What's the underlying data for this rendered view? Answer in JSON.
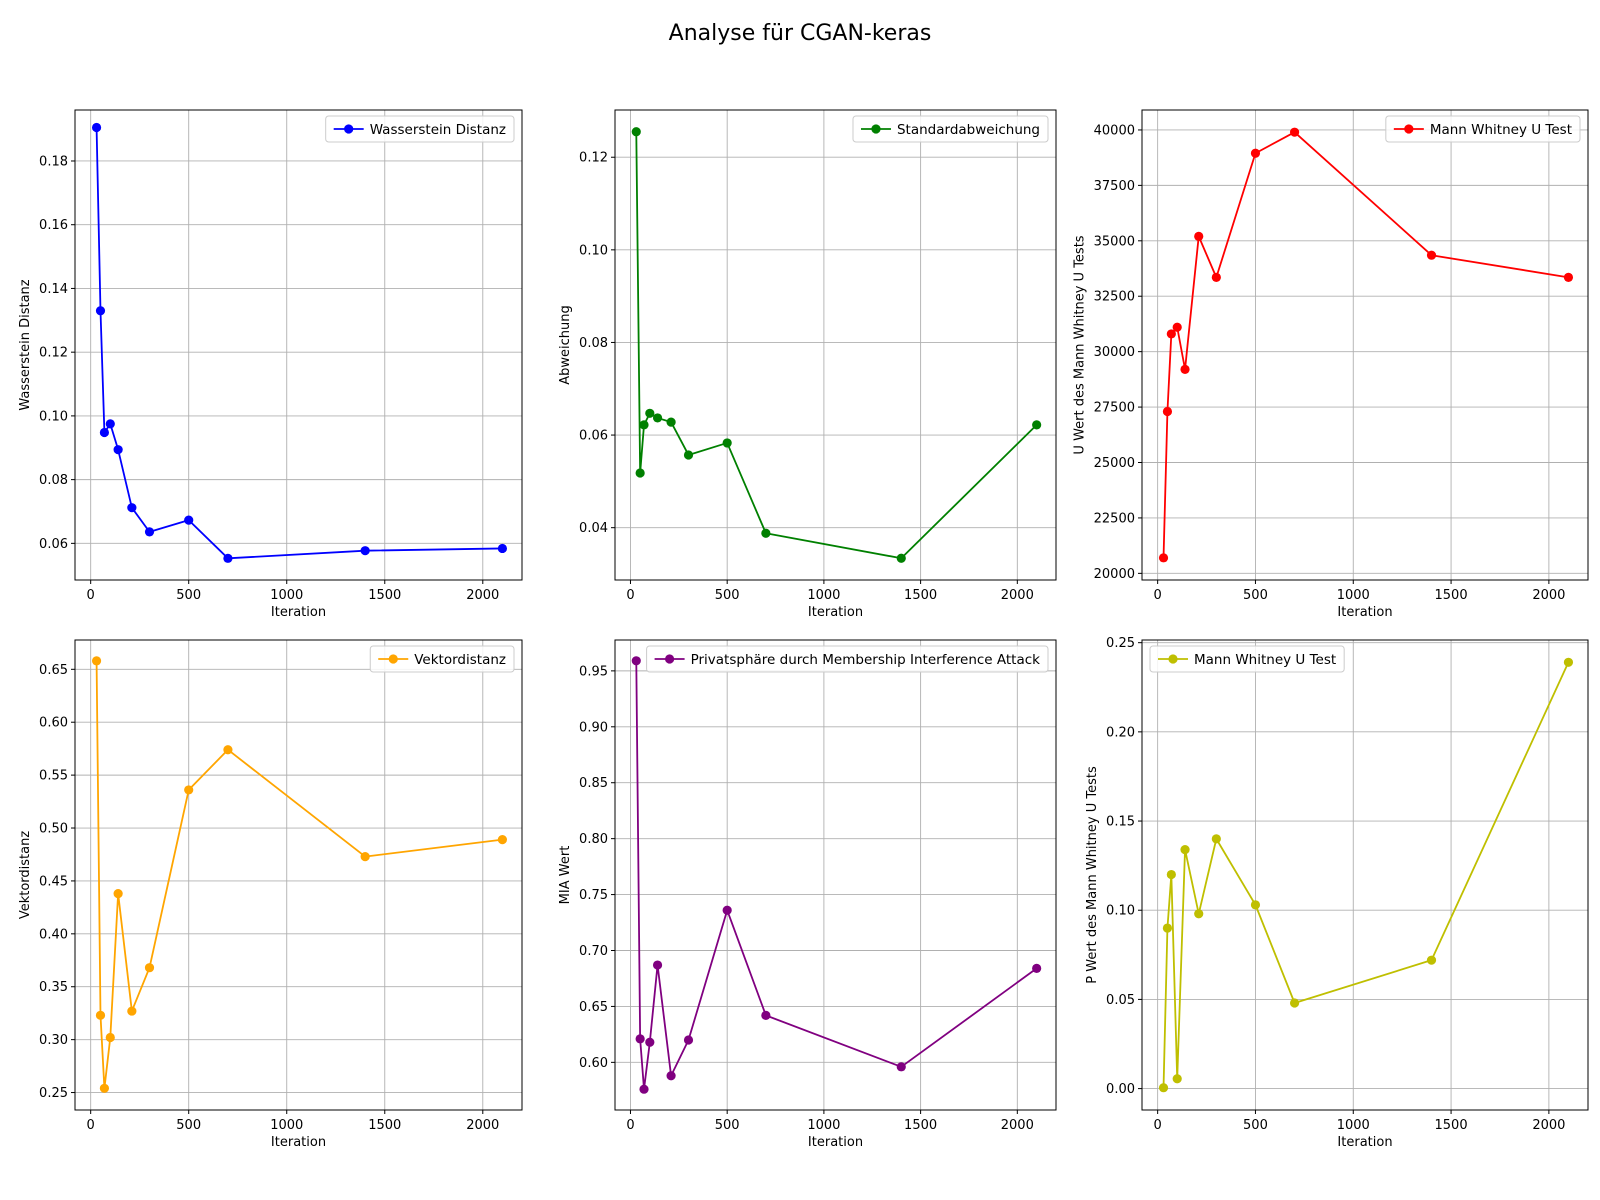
{
  "figure": {
    "suptitle": "Analyse für CGAN-keras"
  },
  "chart_data": [
    {
      "type": "line",
      "xlabel": "Iteration",
      "ylabel": "Wasserstein Distanz",
      "xlim": [
        -80,
        2200
      ],
      "ylim": [
        0.0485,
        0.196
      ],
      "xticks": [
        0,
        500,
        1000,
        1500,
        2000
      ],
      "yticks": [
        0.06,
        0.08,
        0.1,
        0.12,
        0.14,
        0.16,
        0.18
      ],
      "ytick_labels": [
        "0.06",
        "0.08",
        "0.10",
        "0.12",
        "0.14",
        "0.16",
        "0.18"
      ],
      "grid": true,
      "legend_position": "upper right",
      "series": [
        {
          "name": "Wasserstein Distanz",
          "color": "#0000ff",
          "x": [
            30,
            50,
            70,
            100,
            140,
            210,
            300,
            500,
            700,
            1400,
            2100
          ],
          "y": [
            0.1905,
            0.133,
            0.0948,
            0.0975,
            0.0894,
            0.0712,
            0.0636,
            0.0673,
            0.0553,
            0.0577,
            0.0584
          ]
        }
      ]
    },
    {
      "type": "line",
      "xlabel": "Iteration",
      "ylabel": "Abweichung",
      "xlim": [
        -80,
        2200
      ],
      "ylim": [
        0.0287,
        0.1302
      ],
      "xticks": [
        0,
        500,
        1000,
        1500,
        2000
      ],
      "yticks": [
        0.04,
        0.06,
        0.08,
        0.1,
        0.12
      ],
      "ytick_labels": [
        "0.04",
        "0.06",
        "0.08",
        "0.10",
        "0.12"
      ],
      "grid": true,
      "legend_position": "upper right",
      "series": [
        {
          "name": "Standardabweichung",
          "color": "#008000",
          "x": [
            30,
            50,
            70,
            100,
            140,
            210,
            300,
            500,
            700,
            1400,
            2100
          ],
          "y": [
            0.1255,
            0.0518,
            0.0622,
            0.0647,
            0.0637,
            0.0628,
            0.0557,
            0.0583,
            0.0388,
            0.0334,
            0.0622
          ]
        }
      ]
    },
    {
      "type": "line",
      "xlabel": "Iteration",
      "ylabel": "U Wert des Mann Whitney U Tests",
      "xlim": [
        -80,
        2200
      ],
      "ylim": [
        19700,
        40900
      ],
      "xticks": [
        0,
        500,
        1000,
        1500,
        2000
      ],
      "yticks": [
        20000,
        22500,
        25000,
        27500,
        30000,
        32500,
        35000,
        37500,
        40000
      ],
      "ytick_labels": [
        "20000",
        "22500",
        "25000",
        "27500",
        "30000",
        "32500",
        "35000",
        "37500",
        "40000"
      ],
      "grid": true,
      "legend_position": "upper right",
      "series": [
        {
          "name": "Mann Whitney U Test",
          "color": "#ff0000",
          "x": [
            30,
            50,
            70,
            100,
            140,
            210,
            300,
            500,
            700,
            1400,
            2100
          ],
          "y": [
            20700,
            27300,
            30800,
            31100,
            29200,
            35200,
            33350,
            38950,
            39900,
            34350,
            33350
          ]
        }
      ]
    },
    {
      "type": "line",
      "xlabel": "Iteration",
      "ylabel": "Vektordistanz",
      "xlim": [
        -80,
        2200
      ],
      "ylim": [
        0.2335,
        0.6777
      ],
      "xticks": [
        0,
        500,
        1000,
        1500,
        2000
      ],
      "yticks": [
        0.25,
        0.3,
        0.35,
        0.4,
        0.45,
        0.5,
        0.55,
        0.6,
        0.65
      ],
      "ytick_labels": [
        "0.25",
        "0.30",
        "0.35",
        "0.40",
        "0.45",
        "0.50",
        "0.55",
        "0.60",
        "0.65"
      ],
      "grid": true,
      "legend_position": "upper right",
      "series": [
        {
          "name": "Vektordistanz",
          "color": "#ffa500",
          "x": [
            30,
            50,
            70,
            100,
            140,
            210,
            300,
            500,
            700,
            1400,
            2100
          ],
          "y": [
            0.658,
            0.323,
            0.254,
            0.302,
            0.438,
            0.327,
            0.368,
            0.536,
            0.574,
            0.473,
            0.489
          ]
        }
      ]
    },
    {
      "type": "line",
      "xlabel": "Iteration",
      "ylabel": "MIA Wert",
      "xlim": [
        -80,
        2200
      ],
      "ylim": [
        0.5574,
        0.9776
      ],
      "xticks": [
        0,
        500,
        1000,
        1500,
        2000
      ],
      "yticks": [
        0.6,
        0.65,
        0.7,
        0.75,
        0.8,
        0.85,
        0.9,
        0.95
      ],
      "ytick_labels": [
        "0.60",
        "0.65",
        "0.70",
        "0.75",
        "0.80",
        "0.85",
        "0.90",
        "0.95"
      ],
      "grid": true,
      "legend_position": "upper right",
      "series": [
        {
          "name": "Privatsphäre durch Membership Interference Attack",
          "color": "#800080",
          "x": [
            30,
            50,
            70,
            100,
            140,
            210,
            300,
            500,
            700,
            1400,
            2100
          ],
          "y": [
            0.959,
            0.621,
            0.576,
            0.618,
            0.687,
            0.588,
            0.62,
            0.736,
            0.642,
            0.596,
            0.684
          ]
        }
      ]
    },
    {
      "type": "line",
      "xlabel": "Iteration",
      "ylabel": "P Wert des Mann Whitney U Tests",
      "xlim": [
        -80,
        2200
      ],
      "ylim": [
        -0.012,
        0.2515
      ],
      "xticks": [
        0,
        500,
        1000,
        1500,
        2000
      ],
      "yticks": [
        0.0,
        0.05,
        0.1,
        0.15,
        0.2,
        0.25
      ],
      "ytick_labels": [
        "0.00",
        "0.05",
        "0.10",
        "0.15",
        "0.20",
        "0.25"
      ],
      "grid": true,
      "legend_position": "upper left",
      "series": [
        {
          "name": "Mann Whitney U Test",
          "color": "#bfbf00",
          "x": [
            30,
            50,
            70,
            100,
            140,
            210,
            300,
            500,
            700,
            1400,
            2100
          ],
          "y": [
            0.0005,
            0.09,
            0.12,
            0.0055,
            0.134,
            0.098,
            0.14,
            0.103,
            0.048,
            0.072,
            0.239
          ]
        }
      ]
    }
  ]
}
